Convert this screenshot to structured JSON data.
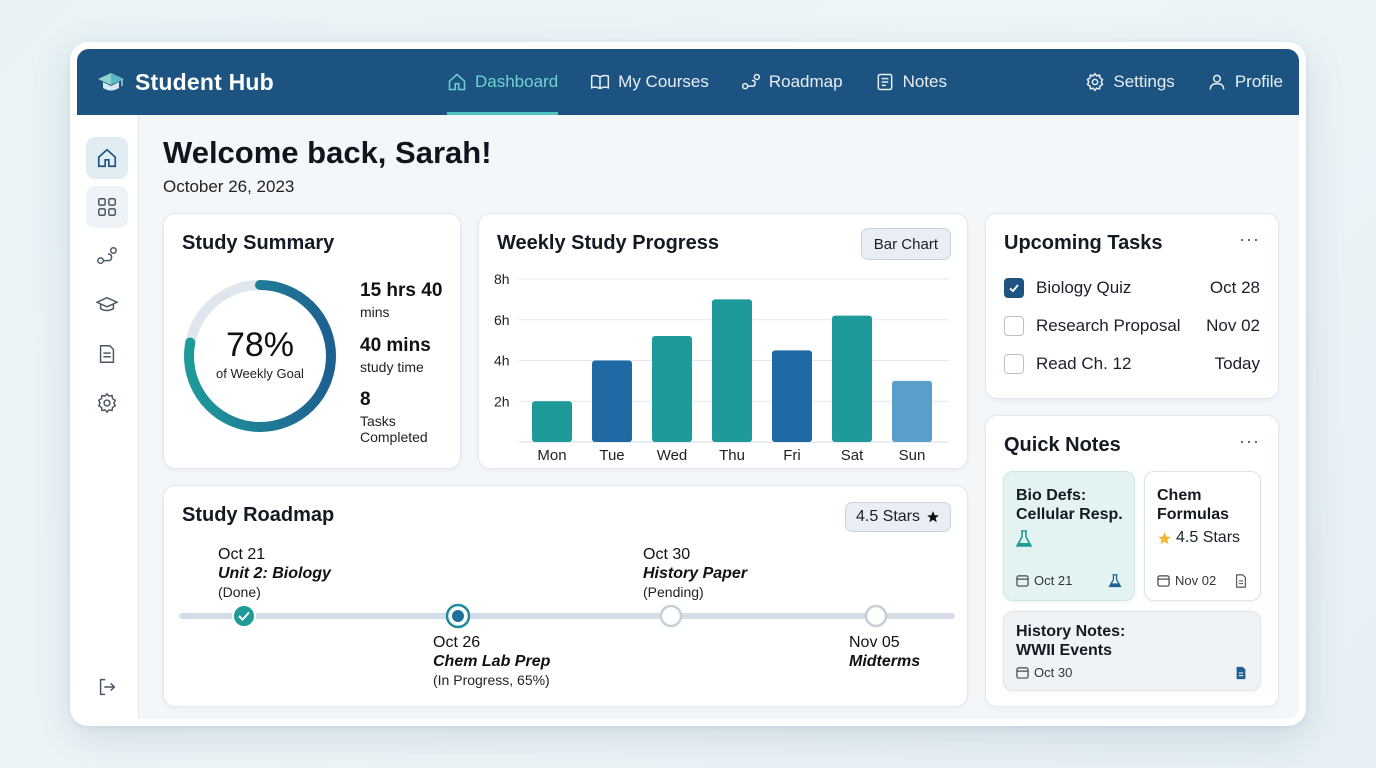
{
  "app": {
    "title": "Student Hub"
  },
  "nav": {
    "items": [
      {
        "label": "Dashboard",
        "icon": "home-icon",
        "active": true
      },
      {
        "label": "My Courses",
        "icon": "book-icon"
      },
      {
        "label": "Roadmap",
        "icon": "route-icon"
      },
      {
        "label": "Notes",
        "icon": "notes-icon"
      }
    ],
    "right": [
      {
        "label": "Settings",
        "icon": "gear-icon"
      },
      {
        "label": "Profile",
        "icon": "user-icon"
      }
    ]
  },
  "sidebar": {
    "items": [
      "home-icon",
      "grid-icon",
      "route-icon",
      "graduation-cap-icon",
      "document-icon",
      "gear-icon"
    ],
    "bottom": "logout-icon"
  },
  "header": {
    "welcome": "Welcome back, Sarah!",
    "date": "October 26, 2023"
  },
  "summary": {
    "title": "Study Summary",
    "percent": "78%",
    "percent_value": 0.78,
    "percent_label": "of Weekly Goal",
    "stats": [
      {
        "big": "15 hrs 40",
        "small": "mins"
      },
      {
        "big": "40 mins",
        "small": "study time"
      },
      {
        "big": "8",
        "small": "Tasks Completed"
      }
    ]
  },
  "weekly": {
    "title": "Weekly Study Progress",
    "toggle_label": "Bar Chart"
  },
  "chart_data": {
    "type": "bar",
    "title": "Weekly Study Progress",
    "categories": [
      "Mon",
      "Tue",
      "Wed",
      "Thu",
      "Fri",
      "Sat",
      "Sun"
    ],
    "values": [
      2,
      4,
      5.2,
      7,
      4.5,
      6.2,
      3
    ],
    "y_ticks": [
      "2h",
      "4h",
      "6h",
      "8h"
    ],
    "ylim": [
      0,
      8
    ],
    "grid": true,
    "colors": [
      "#1e9a9a",
      "#1f6aa5",
      "#1e9a9a",
      "#1e9a9a",
      "#1f6aa5",
      "#1e9a9a",
      "#5a9fc9"
    ]
  },
  "tasks": {
    "title": "Upcoming Tasks",
    "more": "···",
    "items": [
      {
        "label": "Biology Quiz",
        "date": "Oct 28",
        "checked": true
      },
      {
        "label": "Research Proposal",
        "date": "Nov 02",
        "checked": false
      },
      {
        "label": "Read Ch. 12",
        "date": "Today",
        "checked": false
      }
    ]
  },
  "notes": {
    "title": "Quick Notes",
    "more": "···",
    "items": [
      {
        "title1": "Bio Defs:",
        "title2": "Cellular Resp.",
        "date": "Oct 21",
        "icon": "flask-icon"
      },
      {
        "title1": "Chem",
        "title2": "Formulas",
        "rating": "4.5 Stars",
        "date": "Nov 02",
        "icon": "document-icon"
      },
      {
        "title1": "History Notes:",
        "title2": "WWII Events",
        "date": "Oct 30",
        "icon": "document-icon"
      }
    ]
  },
  "roadmap": {
    "title": "Study Roadmap",
    "rating": "4.5 Stars",
    "progress": 0.49,
    "milestones": [
      {
        "date": "Oct 21",
        "title": "Unit 2: Biology",
        "status": "(Done)"
      },
      {
        "date": "Oct 26",
        "title": "Chem Lab Prep",
        "status": "(In Progress, 65%)"
      },
      {
        "date": "Oct 30",
        "title": "History Paper",
        "status": "(Pending)"
      },
      {
        "date": "Nov 05",
        "title": "Midterms",
        "status": ""
      }
    ]
  },
  "colors": {
    "brand": "#1c5381",
    "accent": "#1e9a9a",
    "active_nav": "#6fd4d0"
  }
}
